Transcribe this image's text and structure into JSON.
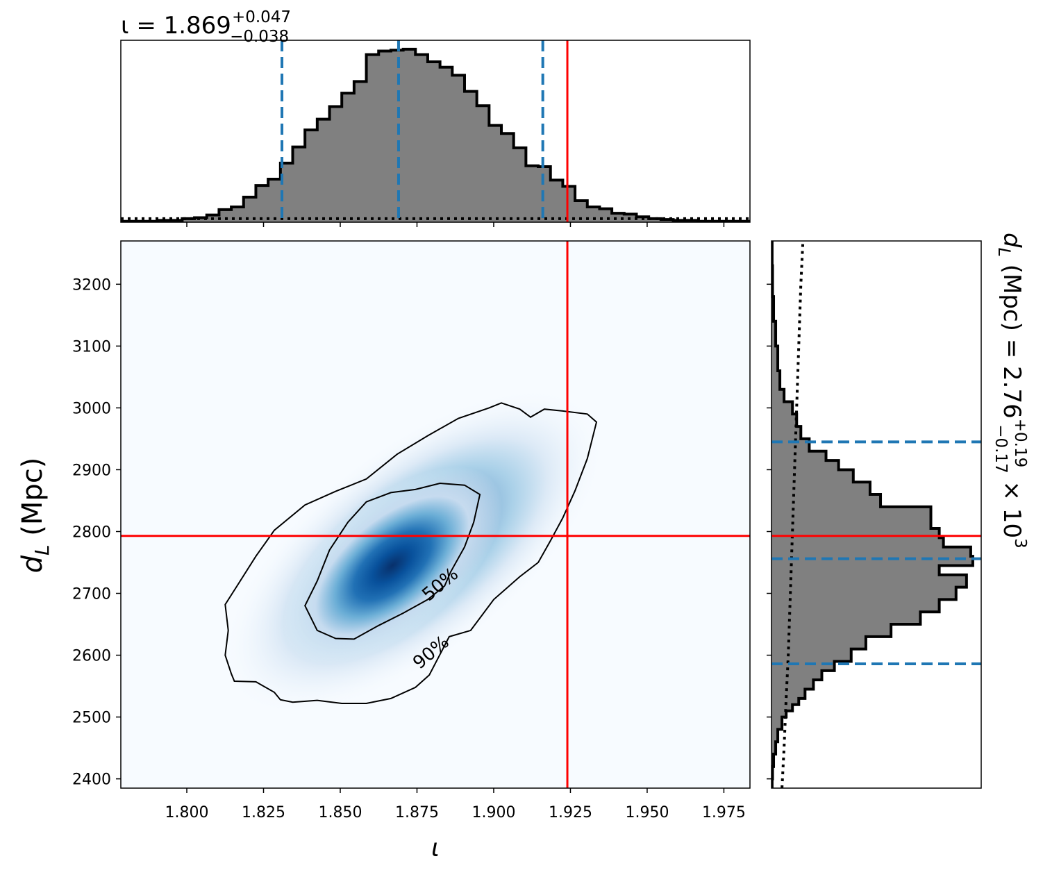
{
  "chart_data": [
    {
      "panel": "iota-marginal",
      "type": "histogram",
      "title": {
        "base": "ι = 1.869",
        "sup": "+0.047",
        "sub": "−0.038"
      },
      "xlim": [
        1.7785,
        1.9835
      ],
      "ylim": [
        0,
        2.03
      ],
      "bin_edges": [
        1.7785,
        1.7825,
        1.7865,
        1.7905,
        1.7945,
        1.7985,
        1.8025,
        1.8065,
        1.8105,
        1.8145,
        1.8185,
        1.8225,
        1.8265,
        1.8305,
        1.8345,
        1.8385,
        1.8425,
        1.8465,
        1.8505,
        1.8545,
        1.8585,
        1.8625,
        1.8665,
        1.8705,
        1.8745,
        1.8785,
        1.8825,
        1.8865,
        1.8905,
        1.8945,
        1.8985,
        1.9025,
        1.9065,
        1.9105,
        1.9145,
        1.9185,
        1.9225,
        1.9265,
        1.9305,
        1.9345,
        1.9385,
        1.9425,
        1.9465,
        1.9505,
        1.9545,
        1.9585,
        1.9625,
        1.9665,
        1.9705,
        1.9745,
        1.9785,
        1.9835
      ],
      "counts": [
        0.01,
        0.01,
        0.01,
        0.02,
        0.02,
        0.04,
        0.05,
        0.08,
        0.14,
        0.17,
        0.28,
        0.41,
        0.48,
        0.66,
        0.84,
        1.03,
        1.15,
        1.29,
        1.44,
        1.57,
        1.87,
        1.91,
        1.92,
        1.93,
        1.87,
        1.79,
        1.73,
        1.64,
        1.46,
        1.3,
        1.08,
        0.99,
        0.83,
        0.63,
        0.62,
        0.47,
        0.4,
        0.24,
        0.17,
        0.15,
        0.1,
        0.09,
        0.06,
        0.04,
        0.03,
        0.02,
        0.02,
        0.01,
        0.01,
        0.01,
        0.01
      ],
      "prior_level": 0.04,
      "quantile_lines": [
        1.831,
        1.869,
        1.916
      ],
      "injection": 1.924,
      "colors": {
        "fill": "#808080",
        "edge": "#000000",
        "quantile": "#1f77b4",
        "injection": "#ff0000"
      }
    },
    {
      "panel": "joint",
      "type": "heatmap",
      "xlabel": "ι",
      "ylabel": {
        "base": "d",
        "sub": "L",
        "unit": " (Mpc)"
      },
      "xlim": [
        1.7785,
        1.9835
      ],
      "ylim": [
        2385,
        3270
      ],
      "xticks": [
        1.8,
        1.825,
        1.85,
        1.875,
        1.9,
        1.925,
        1.95,
        1.975
      ],
      "xtick_labels": [
        "1.800",
        "1.825",
        "1.850",
        "1.875",
        "1.900",
        "1.925",
        "1.950",
        "1.975"
      ],
      "yticks": [
        2400,
        2500,
        2600,
        2700,
        2800,
        2900,
        3000,
        3100,
        3200
      ],
      "ytick_labels": [
        "2400",
        "2500",
        "2600",
        "2700",
        "2800",
        "2900",
        "3000",
        "3100",
        "3200"
      ],
      "density_peak": {
        "x": 1.867,
        "y": 2745
      },
      "colormap": "Blues",
      "contours": [
        {
          "label": "50%",
          "label_at": [
            1.8825,
            2715
          ],
          "path": [
            [
              1.8385,
              2680
            ],
            [
              1.8425,
              2640
            ],
            [
              1.8485,
              2627
            ],
            [
              1.8545,
              2626
            ],
            [
              1.8625,
              2648
            ],
            [
              1.8705,
              2668
            ],
            [
              1.8785,
              2690
            ],
            [
              1.884,
              2712
            ],
            [
              1.886,
              2735
            ],
            [
              1.8905,
              2775
            ],
            [
              1.8935,
              2815
            ],
            [
              1.8955,
              2860
            ],
            [
              1.8905,
              2875
            ],
            [
              1.8825,
              2878
            ],
            [
              1.8745,
              2868
            ],
            [
              1.8665,
              2863
            ],
            [
              1.8585,
              2848
            ],
            [
              1.8525,
              2815
            ],
            [
              1.8465,
              2770
            ],
            [
              1.8425,
              2720
            ],
            [
              1.8385,
              2680
            ]
          ]
        },
        {
          "label": "90%",
          "label_at": [
            1.8795,
            2605
          ],
          "path": [
            [
              1.8155,
              2558
            ],
            [
              1.8225,
              2557
            ],
            [
              1.8285,
              2540
            ],
            [
              1.8305,
              2528
            ],
            [
              1.8345,
              2524
            ],
            [
              1.8425,
              2527
            ],
            [
              1.8505,
              2522
            ],
            [
              1.8585,
              2522
            ],
            [
              1.8665,
              2530
            ],
            [
              1.8745,
              2548
            ],
            [
              1.879,
              2568
            ],
            [
              1.8855,
              2630
            ],
            [
              1.8925,
              2640
            ],
            [
              1.9,
              2690
            ],
            [
              1.9085,
              2727
            ],
            [
              1.9145,
              2750
            ],
            [
              1.9185,
              2785
            ],
            [
              1.9225,
              2822
            ],
            [
              1.9265,
              2866
            ],
            [
              1.9305,
              2918
            ],
            [
              1.9335,
              2977
            ],
            [
              1.9305,
              2990
            ],
            [
              1.9225,
              2995
            ],
            [
              1.9165,
              2998
            ],
            [
              1.912,
              2985
            ],
            [
              1.9085,
              2998
            ],
            [
              1.9025,
              3008
            ],
            [
              1.8985,
              3000
            ],
            [
              1.8885,
              2983
            ],
            [
              1.8785,
              2955
            ],
            [
              1.8685,
              2925
            ],
            [
              1.8585,
              2885
            ],
            [
              1.8485,
              2865
            ],
            [
              1.8385,
              2843
            ],
            [
              1.8285,
              2802
            ],
            [
              1.8225,
              2760
            ],
            [
              1.8165,
              2713
            ],
            [
              1.8125,
              2682
            ],
            [
              1.8135,
              2640
            ],
            [
              1.8125,
              2600
            ],
            [
              1.8145,
              2570
            ],
            [
              1.8155,
              2558
            ]
          ]
        }
      ],
      "injection": {
        "x": 1.924,
        "y": 2793
      }
    },
    {
      "panel": "dL-marginal",
      "type": "histogram",
      "orientation": "horizontal",
      "title": {
        "base": "d",
        "sub": "L",
        "mid": " (Mpc) = 2.76",
        "sup": "+0.19",
        "subscript": "−0.17",
        "tail": " × 10",
        "exp": "3"
      },
      "ylim": [
        2385,
        3270
      ],
      "xlim": [
        0,
        1.0
      ],
      "bin_edges": [
        2385,
        2400,
        2420,
        2440,
        2460,
        2480,
        2500,
        2510,
        2520,
        2530,
        2545,
        2560,
        2575,
        2590,
        2610,
        2630,
        2650,
        2670,
        2690,
        2710,
        2730,
        2745,
        2760,
        2775,
        2790,
        2805,
        2820,
        2840,
        2860,
        2880,
        2900,
        2915,
        2930,
        2950,
        2970,
        2990,
        3010,
        3030,
        3060,
        3100,
        3140,
        3180,
        3230,
        3270
      ],
      "counts": [
        0.003,
        0.005,
        0.01,
        0.02,
        0.03,
        0.05,
        0.07,
        0.1,
        0.13,
        0.16,
        0.2,
        0.24,
        0.3,
        0.38,
        0.45,
        0.57,
        0.71,
        0.8,
        0.88,
        0.93,
        0.8,
        0.96,
        0.95,
        0.82,
        0.8,
        0.76,
        0.76,
        0.52,
        0.47,
        0.39,
        0.32,
        0.26,
        0.18,
        0.14,
        0.12,
        0.1,
        0.06,
        0.04,
        0.03,
        0.02,
        0.01,
        0.005,
        0.003
      ],
      "prior_path": [
        [
          0.05,
          2385
        ],
        [
          0.06,
          2450
        ],
        [
          0.07,
          2530
        ],
        [
          0.08,
          2600
        ],
        [
          0.09,
          2700
        ],
        [
          0.1,
          2800
        ],
        [
          0.11,
          2900
        ],
        [
          0.12,
          3000
        ],
        [
          0.13,
          3100
        ],
        [
          0.14,
          3200
        ],
        [
          0.15,
          3270
        ]
      ],
      "quantile_lines": [
        2586,
        2756,
        2945
      ],
      "injection": 2793,
      "colors": {
        "fill": "#808080",
        "edge": "#000000",
        "quantile": "#1f77b4",
        "injection": "#ff0000"
      }
    }
  ]
}
